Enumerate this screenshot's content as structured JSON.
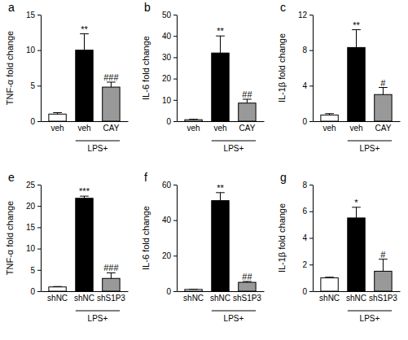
{
  "chart_data": [
    {
      "type": "bar",
      "title": "a",
      "y_label": "TNF-α fold change",
      "categories": [
        "veh",
        "veh",
        "CAY"
      ],
      "values": [
        1.0,
        10.0,
        4.8
      ],
      "errors": [
        0.2,
        2.3,
        0.7
      ],
      "colors": [
        "#ffffff",
        "#000000",
        "#999999"
      ],
      "significance": [
        null,
        "**",
        "###"
      ],
      "annotations": [
        "LPS+"
      ],
      "ylim": [
        0,
        15
      ],
      "yticks": [
        0,
        5,
        10,
        15
      ]
    },
    {
      "type": "bar",
      "title": "b",
      "y_label": "IL-6 fold change",
      "categories": [
        "veh",
        "veh",
        "CAY"
      ],
      "values": [
        0.7,
        32,
        8.5
      ],
      "errors": [
        0.2,
        8,
        1.8
      ],
      "colors": [
        "#ffffff",
        "#000000",
        "#999999"
      ],
      "significance": [
        null,
        "**",
        "##"
      ],
      "annotations": [
        "LPS+"
      ],
      "ylim": [
        0,
        50
      ],
      "yticks": [
        0,
        10,
        20,
        30,
        40,
        50
      ]
    },
    {
      "type": "bar",
      "title": "c",
      "y_label": "IL-1β fold change",
      "categories": [
        "veh",
        "veh",
        "CAY"
      ],
      "values": [
        0.7,
        8.3,
        3.0
      ],
      "errors": [
        0.15,
        2.0,
        0.8
      ],
      "colors": [
        "#ffffff",
        "#000000",
        "#999999"
      ],
      "significance": [
        null,
        "**",
        "#"
      ],
      "annotations": [
        "LPS+"
      ],
      "ylim": [
        0,
        12
      ],
      "yticks": [
        0,
        4,
        8,
        12
      ]
    },
    {
      "type": "bar",
      "title": "e",
      "y_label": "TNF-α fold change",
      "categories": [
        "shNC",
        "shNC",
        "shS1P3"
      ],
      "values": [
        1.0,
        21.8,
        3.0
      ],
      "errors": [
        0.1,
        0.5,
        1.3
      ],
      "colors": [
        "#ffffff",
        "#000000",
        "#999999"
      ],
      "significance": [
        null,
        "***",
        "###"
      ],
      "annotations": [
        "LPS+"
      ],
      "ylim": [
        0,
        25
      ],
      "yticks": [
        0,
        5,
        10,
        15,
        20,
        25
      ]
    },
    {
      "type": "bar",
      "title": "f",
      "y_label": "IL-6 fold change",
      "categories": [
        "shNC",
        "shNC",
        "shS1P3"
      ],
      "values": [
        1.0,
        51,
        5.0
      ],
      "errors": [
        0.1,
        4.5,
        0.5
      ],
      "colors": [
        "#ffffff",
        "#000000",
        "#999999"
      ],
      "significance": [
        null,
        "**",
        "##"
      ],
      "annotations": [
        "LPS+"
      ],
      "ylim": [
        0,
        60
      ],
      "yticks": [
        0,
        20,
        40,
        60
      ]
    },
    {
      "type": "bar",
      "title": "g",
      "y_label": "IL-1β fold change",
      "categories": [
        "shNC",
        "shNC",
        "shS1P3"
      ],
      "values": [
        1.0,
        5.5,
        1.5
      ],
      "errors": [
        0.05,
        0.8,
        0.9
      ],
      "colors": [
        "#ffffff",
        "#000000",
        "#999999"
      ],
      "significance": [
        null,
        "*",
        "#"
      ],
      "annotations": [
        "LPS+"
      ],
      "ylim": [
        0,
        8
      ],
      "yticks": [
        0,
        2,
        4,
        6,
        8
      ]
    }
  ]
}
